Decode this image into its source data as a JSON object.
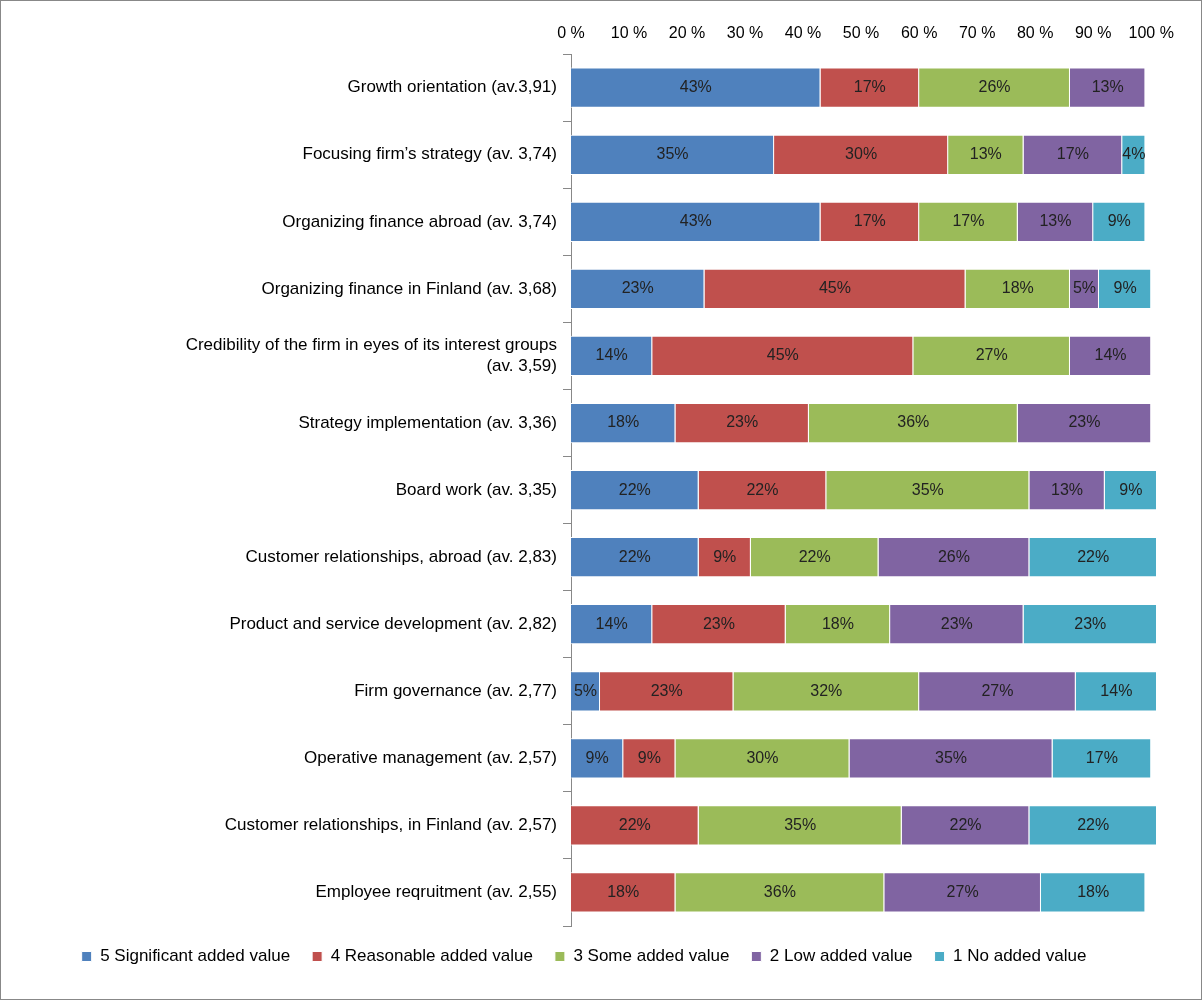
{
  "chart_data": {
    "type": "bar",
    "orientation": "horizontal",
    "stacked": true,
    "categories": [
      "Growth orientation (av.3,91)",
      "Focusing firm’s strategy (av. 3,74)",
      "Organizing finance abroad (av. 3,74)",
      "Organizing finance in Finland (av. 3,68)",
      "Credibility of the firm in eyes of its interest groups (av. 3,59)",
      "Strategy implementation (av. 3,36)",
      "Board work (av. 3,35)",
      "Customer relationships, abroad (av. 2,83)",
      "Product and service development (av. 2,82)",
      "Firm governance (av. 2,77)",
      "Operative management (av. 2,57)",
      "Customer relationships, in Finland (av. 2,57)",
      "Employee reqruitment (av. 2,55)"
    ],
    "series": [
      {
        "name": "5 Significant added value",
        "color": "#4f81bd",
        "values": [
          43,
          35,
          43,
          23,
          14,
          18,
          22,
          22,
          14,
          5,
          9,
          null,
          null
        ],
        "value_labels": [
          "43%",
          "35%",
          "43%",
          "23%",
          "14%",
          "18%",
          "22%",
          "22%",
          "14%",
          "5%",
          "9%",
          null,
          null
        ]
      },
      {
        "name": "4 Reasonable added value",
        "color": "#c0504d",
        "values": [
          17,
          30,
          17,
          45,
          45,
          23,
          22,
          9,
          23,
          23,
          9,
          22,
          18
        ],
        "value_labels": [
          "17%",
          "30%",
          "17%",
          "45%",
          "45%",
          "23%",
          "22%",
          "9%",
          "23%",
          "23%",
          "9%",
          "22%",
          "18%"
        ]
      },
      {
        "name": "3 Some added value",
        "color": "#9bbb59",
        "values": [
          26,
          13,
          17,
          18,
          27,
          36,
          35,
          22,
          18,
          32,
          30,
          35,
          36
        ],
        "value_labels": [
          "26%",
          "13%",
          "17%",
          "18%",
          "27%",
          "36%",
          "35%",
          "22%",
          "18%",
          "32%",
          "30%",
          "35%",
          "36%"
        ]
      },
      {
        "name": "2 Low added value",
        "color": "#8064a2",
        "values": [
          13,
          17,
          13,
          5,
          14,
          23,
          13,
          26,
          23,
          27,
          35,
          22,
          27
        ],
        "value_labels": [
          "13%",
          "17%",
          "13%",
          "5%",
          "14%",
          "23%",
          "13%",
          "26%",
          "23%",
          "27%",
          "35%",
          "22%",
          "27%"
        ]
      },
      {
        "name": "1 No added value",
        "color": "#4bacc6",
        "values": [
          null,
          4,
          9,
          9,
          null,
          null,
          9,
          22,
          23,
          14,
          17,
          22,
          18
        ],
        "value_labels": [
          null,
          "4%",
          "9%",
          "9%",
          null,
          null,
          "9%",
          "22%",
          "23%",
          "14%",
          "17%",
          "22%",
          "18%"
        ]
      }
    ],
    "xlim": [
      0,
      101
    ],
    "xticks": [
      {
        "value": 0,
        "label": "0 %"
      },
      {
        "value": 10,
        "label": "10 %"
      },
      {
        "value": 20,
        "label": "20 %"
      },
      {
        "value": 30,
        "label": "30 %"
      },
      {
        "value": 40,
        "label": "40 %"
      },
      {
        "value": 50,
        "label": "50 %"
      },
      {
        "value": 60,
        "label": "60 %"
      },
      {
        "value": 70,
        "label": "70 %"
      },
      {
        "value": 80,
        "label": "80 %"
      },
      {
        "value": 90,
        "label": "90 %"
      },
      {
        "value": 100,
        "label": "100 %"
      }
    ],
    "grid": false,
    "legend": "bottom"
  }
}
